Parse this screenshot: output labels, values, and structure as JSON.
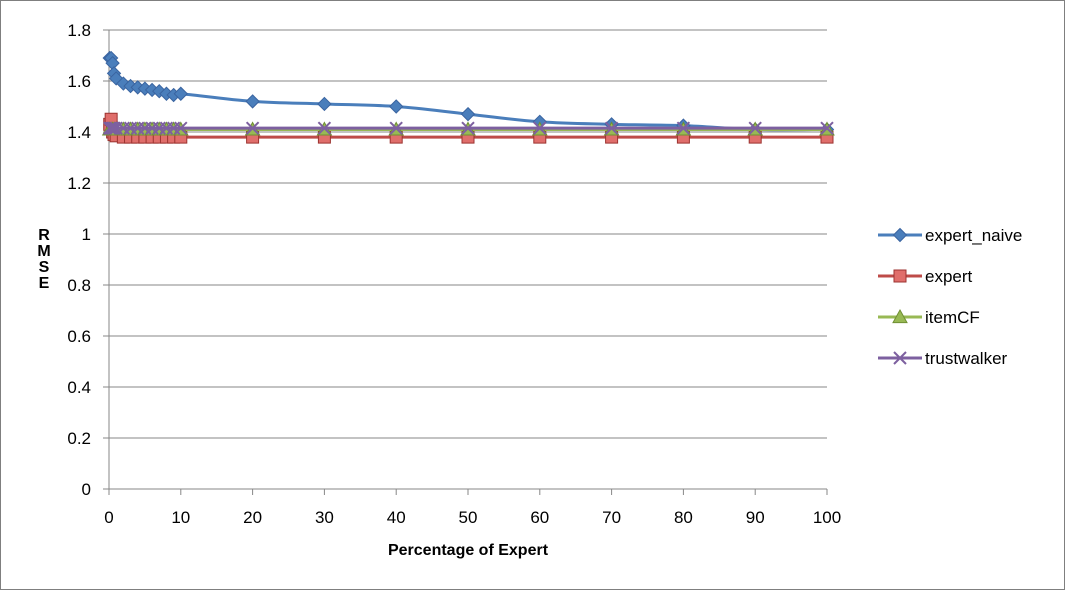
{
  "chart_data": {
    "type": "line",
    "title": "",
    "xlabel": "Percentage of Expert",
    "ylabel": "RMSE",
    "xlim": [
      0,
      100
    ],
    "ylim": [
      0,
      1.8
    ],
    "x_ticks": [
      "0",
      "10",
      "20",
      "30",
      "40",
      "50",
      "60",
      "70",
      "80",
      "90",
      "100"
    ],
    "y_ticks": [
      "0",
      "0.2",
      "0.4",
      "0.6",
      "0.8",
      "1",
      "1.2",
      "1.4",
      "1.6",
      "1.8"
    ],
    "grid": true,
    "legend_position": "right",
    "series": [
      {
        "name": "expert_naive",
        "color": "#4a7ebb",
        "marker": "diamond",
        "x": [
          0.1,
          0.3,
          0.5,
          0.7,
          1,
          2,
          3,
          4,
          5,
          6,
          7,
          8,
          9,
          10,
          20,
          30,
          40,
          50,
          60,
          70,
          80,
          90,
          100
        ],
        "y": [
          1.69,
          1.69,
          1.67,
          1.63,
          1.61,
          1.59,
          1.58,
          1.575,
          1.57,
          1.565,
          1.56,
          1.55,
          1.545,
          1.55,
          1.52,
          1.51,
          1.5,
          1.47,
          1.44,
          1.43,
          1.425,
          1.41,
          1.41
        ]
      },
      {
        "name": "expert",
        "color": "#be4b48",
        "marker": "square",
        "x": [
          0.1,
          0.3,
          0.5,
          0.7,
          1,
          2,
          3,
          4,
          5,
          6,
          7,
          8,
          9,
          10,
          20,
          30,
          40,
          50,
          60,
          70,
          80,
          90,
          100
        ],
        "y": [
          1.43,
          1.45,
          1.4,
          1.39,
          1.385,
          1.38,
          1.38,
          1.38,
          1.38,
          1.38,
          1.38,
          1.38,
          1.38,
          1.38,
          1.38,
          1.38,
          1.38,
          1.38,
          1.38,
          1.38,
          1.38,
          1.38,
          1.38
        ]
      },
      {
        "name": "itemCF",
        "color": "#98b954",
        "marker": "triangle",
        "x": [
          0.1,
          0.3,
          0.5,
          0.7,
          1,
          2,
          3,
          4,
          5,
          6,
          7,
          8,
          9,
          10,
          20,
          30,
          40,
          50,
          60,
          70,
          80,
          90,
          100
        ],
        "y": [
          1.41,
          1.41,
          1.41,
          1.41,
          1.41,
          1.41,
          1.41,
          1.41,
          1.41,
          1.41,
          1.41,
          1.41,
          1.41,
          1.41,
          1.41,
          1.41,
          1.41,
          1.41,
          1.41,
          1.41,
          1.41,
          1.41,
          1.41
        ]
      },
      {
        "name": "trustwalker",
        "color": "#7d60a0",
        "marker": "x",
        "x": [
          0.1,
          0.3,
          0.5,
          0.7,
          1,
          2,
          3,
          4,
          5,
          6,
          7,
          8,
          9,
          10,
          20,
          30,
          40,
          50,
          60,
          70,
          80,
          90,
          100
        ],
        "y": [
          1.415,
          1.415,
          1.415,
          1.415,
          1.415,
          1.415,
          1.415,
          1.415,
          1.415,
          1.415,
          1.415,
          1.415,
          1.415,
          1.415,
          1.415,
          1.415,
          1.415,
          1.415,
          1.415,
          1.415,
          1.415,
          1.415,
          1.415
        ]
      }
    ]
  }
}
